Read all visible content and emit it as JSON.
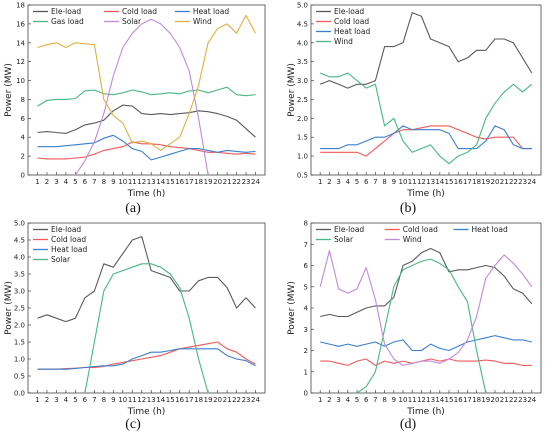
{
  "chart_data": [
    {
      "panel": "(a)",
      "type": "line",
      "xlabel": "Time (h)",
      "ylabel": "Power (MW)",
      "ylim": [
        0,
        18
      ],
      "yticks": [
        0,
        2,
        4,
        6,
        8,
        10,
        12,
        14,
        16,
        18
      ],
      "x": [
        1,
        2,
        3,
        4,
        5,
        6,
        7,
        8,
        9,
        10,
        11,
        12,
        13,
        14,
        15,
        16,
        17,
        18,
        19,
        20,
        21,
        22,
        23,
        24
      ],
      "legend": "top, 3 columns",
      "series": [
        {
          "name": "Ele-load",
          "color": "#5a5a5a",
          "values": [
            4.5,
            4.6,
            4.5,
            4.4,
            4.8,
            5.3,
            5.5,
            5.8,
            6.8,
            7.4,
            7.3,
            6.5,
            6.4,
            6.5,
            6.4,
            6.5,
            6.6,
            6.8,
            6.7,
            6.5,
            6.2,
            5.8,
            4.9,
            4.0
          ]
        },
        {
          "name": "Cold load",
          "color": "#f25a5a",
          "values": [
            1.8,
            1.7,
            1.7,
            1.7,
            1.8,
            1.9,
            2.2,
            2.6,
            2.8,
            3.0,
            3.5,
            3.3,
            3.3,
            3.2,
            3.0,
            2.9,
            2.8,
            2.6,
            2.4,
            2.4,
            2.3,
            2.2,
            2.3,
            2.2
          ]
        },
        {
          "name": "Heat load",
          "color": "#3a7fd0",
          "values": [
            3.0,
            3.0,
            3.0,
            3.1,
            3.2,
            3.3,
            3.4,
            3.9,
            4.2,
            3.6,
            2.8,
            2.5,
            1.6,
            1.9,
            2.2,
            2.5,
            2.8,
            2.8,
            2.6,
            2.4,
            2.6,
            2.5,
            2.4,
            2.5
          ]
        },
        {
          "name": "Gas load",
          "color": "#48b880",
          "values": [
            7.3,
            7.9,
            8.0,
            8.0,
            8.1,
            8.9,
            9.0,
            8.6,
            8.5,
            8.7,
            9.0,
            8.8,
            8.5,
            8.6,
            8.7,
            8.6,
            8.9,
            9.0,
            8.7,
            9.0,
            9.3,
            8.5,
            8.4,
            8.5
          ]
        },
        {
          "name": "Solar",
          "color": "#c08ad8",
          "values": [
            null,
            null,
            null,
            null,
            0,
            1.5,
            3.5,
            6.5,
            10.5,
            13.5,
            15.0,
            16.0,
            16.5,
            16.0,
            15.0,
            13.5,
            11.0,
            6.0,
            0,
            null,
            null,
            null,
            null,
            null
          ]
        },
        {
          "name": "Wind",
          "color": "#e0b040",
          "values": [
            13.5,
            13.8,
            14.0,
            13.5,
            14.0,
            13.9,
            13.8,
            8.0,
            6.3,
            5.5,
            3.4,
            3.6,
            3.3,
            2.6,
            3.3,
            4.0,
            6.5,
            9.5,
            14.0,
            15.5,
            16.0,
            15.0,
            16.9,
            15.0
          ]
        }
      ]
    },
    {
      "panel": "(b)",
      "type": "line",
      "xlabel": "Time (h)",
      "ylabel": "Power (MW)",
      "ylim": [
        0.5,
        5.0
      ],
      "yticks": [
        0.5,
        1.0,
        1.5,
        2.0,
        2.5,
        3.0,
        3.5,
        4.0,
        4.5,
        5.0
      ],
      "x": [
        1,
        2,
        3,
        4,
        5,
        6,
        7,
        8,
        9,
        10,
        11,
        12,
        13,
        14,
        15,
        16,
        17,
        18,
        19,
        20,
        21,
        22,
        23,
        24
      ],
      "legend": "top-left",
      "series": [
        {
          "name": "Ele-load",
          "color": "#5a5a5a",
          "values": [
            2.9,
            3.0,
            2.9,
            2.8,
            2.9,
            2.9,
            3.0,
            3.9,
            3.9,
            4.0,
            4.8,
            4.7,
            4.1,
            4.0,
            3.9,
            3.5,
            3.6,
            3.8,
            3.8,
            4.1,
            4.1,
            4.0,
            3.6,
            3.2
          ]
        },
        {
          "name": "Cold load",
          "color": "#f25a5a",
          "values": [
            1.1,
            1.1,
            1.1,
            1.1,
            1.1,
            1.0,
            1.2,
            1.4,
            1.6,
            1.7,
            1.7,
            1.75,
            1.8,
            1.8,
            1.8,
            1.7,
            1.6,
            1.5,
            1.45,
            1.5,
            1.5,
            1.5,
            1.2,
            1.2
          ]
        },
        {
          "name": "Heat load",
          "color": "#3a7fd0",
          "values": [
            1.2,
            1.2,
            1.2,
            1.3,
            1.3,
            1.4,
            1.5,
            1.5,
            1.6,
            1.8,
            1.7,
            1.7,
            1.7,
            1.7,
            1.6,
            1.2,
            1.2,
            1.2,
            1.4,
            1.8,
            1.7,
            1.3,
            1.2,
            1.2
          ]
        },
        {
          "name": "Wind",
          "color": "#48b880",
          "values": [
            3.2,
            3.1,
            3.1,
            3.2,
            3.0,
            2.8,
            2.9,
            1.8,
            2.0,
            1.4,
            1.1,
            1.2,
            1.3,
            1.0,
            0.8,
            1.0,
            1.1,
            1.3,
            2.0,
            2.4,
            2.7,
            2.9,
            2.7,
            2.9
          ]
        }
      ]
    },
    {
      "panel": "(c)",
      "type": "line",
      "xlabel": "Time (h)",
      "ylabel": "Power (MW)",
      "ylim": [
        0,
        5.0
      ],
      "yticks": [
        0,
        0.5,
        1.0,
        1.5,
        2.0,
        2.5,
        3.0,
        3.5,
        4.0,
        4.5,
        5.0
      ],
      "x": [
        1,
        2,
        3,
        4,
        5,
        6,
        7,
        8,
        9,
        10,
        11,
        12,
        13,
        14,
        15,
        16,
        17,
        18,
        19,
        20,
        21,
        22,
        23,
        24
      ],
      "legend": "top-left",
      "series": [
        {
          "name": "Ele-load",
          "color": "#5a5a5a",
          "values": [
            2.2,
            2.3,
            2.2,
            2.1,
            2.2,
            2.8,
            3.0,
            3.8,
            3.7,
            4.1,
            4.5,
            4.6,
            3.6,
            3.5,
            3.4,
            3.0,
            3.0,
            3.3,
            3.4,
            3.4,
            3.1,
            2.5,
            2.8,
            2.5
          ]
        },
        {
          "name": "Cold load",
          "color": "#f25a5a",
          "values": [
            0.7,
            0.7,
            0.7,
            0.72,
            0.73,
            0.75,
            0.75,
            0.78,
            0.85,
            0.9,
            0.95,
            1.0,
            1.05,
            1.1,
            1.2,
            1.3,
            1.35,
            1.4,
            1.45,
            1.5,
            1.3,
            1.2,
            1.0,
            0.85
          ]
        },
        {
          "name": "Heat load",
          "color": "#3a7fd0",
          "values": [
            0.7,
            0.7,
            0.7,
            0.7,
            0.72,
            0.75,
            0.78,
            0.8,
            0.8,
            0.85,
            1.0,
            1.1,
            1.2,
            1.2,
            1.25,
            1.3,
            1.3,
            1.3,
            1.3,
            1.3,
            1.1,
            1.0,
            0.95,
            0.8
          ]
        },
        {
          "name": "Solar",
          "color": "#48b880",
          "values": [
            null,
            null,
            null,
            null,
            null,
            0,
            1.5,
            3.0,
            3.5,
            3.6,
            3.7,
            3.8,
            3.8,
            3.7,
            3.5,
            3.1,
            2.2,
            1.0,
            0,
            null,
            null,
            null,
            null,
            null
          ]
        }
      ]
    },
    {
      "panel": "(d)",
      "type": "line",
      "xlabel": "Time (h)",
      "ylabel": "Power (MW)",
      "ylim": [
        0,
        8
      ],
      "yticks": [
        0,
        1,
        2,
        3,
        4,
        5,
        6,
        7,
        8
      ],
      "x": [
        1,
        2,
        3,
        4,
        5,
        6,
        7,
        8,
        9,
        10,
        11,
        12,
        13,
        14,
        15,
        16,
        17,
        18,
        19,
        20,
        21,
        22,
        23,
        24
      ],
      "legend": "top, 3 columns",
      "series": [
        {
          "name": "Ele-load",
          "color": "#5a5a5a",
          "values": [
            3.6,
            3.7,
            3.6,
            3.6,
            3.8,
            4.0,
            4.1,
            4.1,
            4.5,
            6.0,
            6.2,
            6.6,
            6.8,
            6.6,
            5.7,
            5.8,
            5.8,
            5.9,
            6.0,
            5.9,
            5.5,
            4.9,
            4.7,
            4.2
          ]
        },
        {
          "name": "Cold load",
          "color": "#f25a5a",
          "values": [
            1.5,
            1.5,
            1.4,
            1.3,
            1.5,
            1.6,
            1.3,
            1.5,
            1.4,
            1.5,
            1.4,
            1.5,
            1.6,
            1.5,
            1.6,
            1.5,
            1.5,
            1.5,
            1.55,
            1.5,
            1.4,
            1.4,
            1.3,
            1.3
          ]
        },
        {
          "name": "Heat load",
          "color": "#3a7fd0",
          "values": [
            2.4,
            2.3,
            2.2,
            2.3,
            2.2,
            2.3,
            2.4,
            2.2,
            2.4,
            2.5,
            2.0,
            2.0,
            2.3,
            2.1,
            2.0,
            2.2,
            2.4,
            2.5,
            2.6,
            2.7,
            2.6,
            2.5,
            2.5,
            2.4
          ]
        },
        {
          "name": "Solar",
          "color": "#48b880",
          "values": [
            null,
            null,
            null,
            null,
            0,
            0.3,
            1.0,
            3.0,
            5.0,
            5.8,
            6.0,
            6.2,
            6.3,
            6.1,
            5.8,
            5.0,
            4.3,
            2.0,
            0,
            null,
            null,
            null,
            null,
            null
          ]
        },
        {
          "name": "Wind",
          "color": "#c08ad8",
          "values": [
            5.0,
            6.7,
            4.9,
            4.7,
            4.9,
            5.9,
            4.4,
            2.3,
            1.6,
            1.3,
            1.4,
            1.5,
            1.5,
            1.4,
            1.6,
            1.9,
            2.5,
            3.6,
            5.4,
            6.0,
            6.5,
            6.1,
            5.6,
            5.0
          ]
        }
      ]
    }
  ]
}
